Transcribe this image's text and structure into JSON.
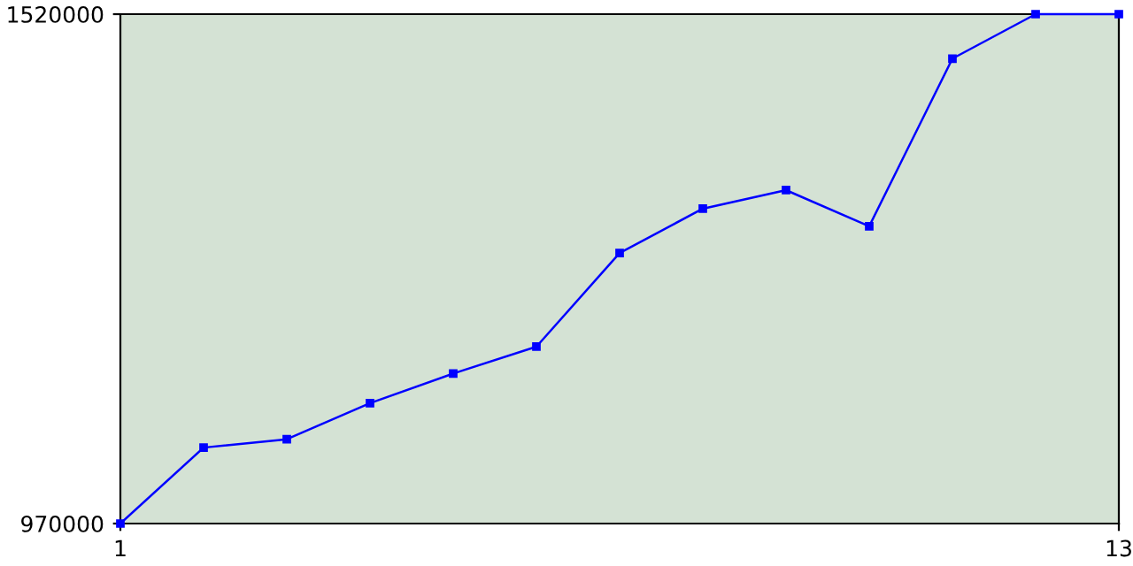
{
  "chart_data": {
    "type": "line",
    "x": [
      1,
      2,
      3,
      4,
      5,
      6,
      7,
      8,
      9,
      10,
      11,
      12,
      13
    ],
    "series": [
      {
        "color": "#0000ff",
        "values": [
          970000,
          1052000,
          1061000,
          1100000,
          1132000,
          1161000,
          1262000,
          1310000,
          1330000,
          1291000,
          1472000,
          1520000,
          1520000
        ]
      }
    ],
    "xlim": [
      1,
      13
    ],
    "xticks": [
      1,
      13
    ],
    "ylim": [
      970000,
      1520000
    ],
    "yticks": [
      970000,
      1520000
    ],
    "grid": false,
    "legend": false,
    "marker": "square",
    "line_style": "solid"
  }
}
